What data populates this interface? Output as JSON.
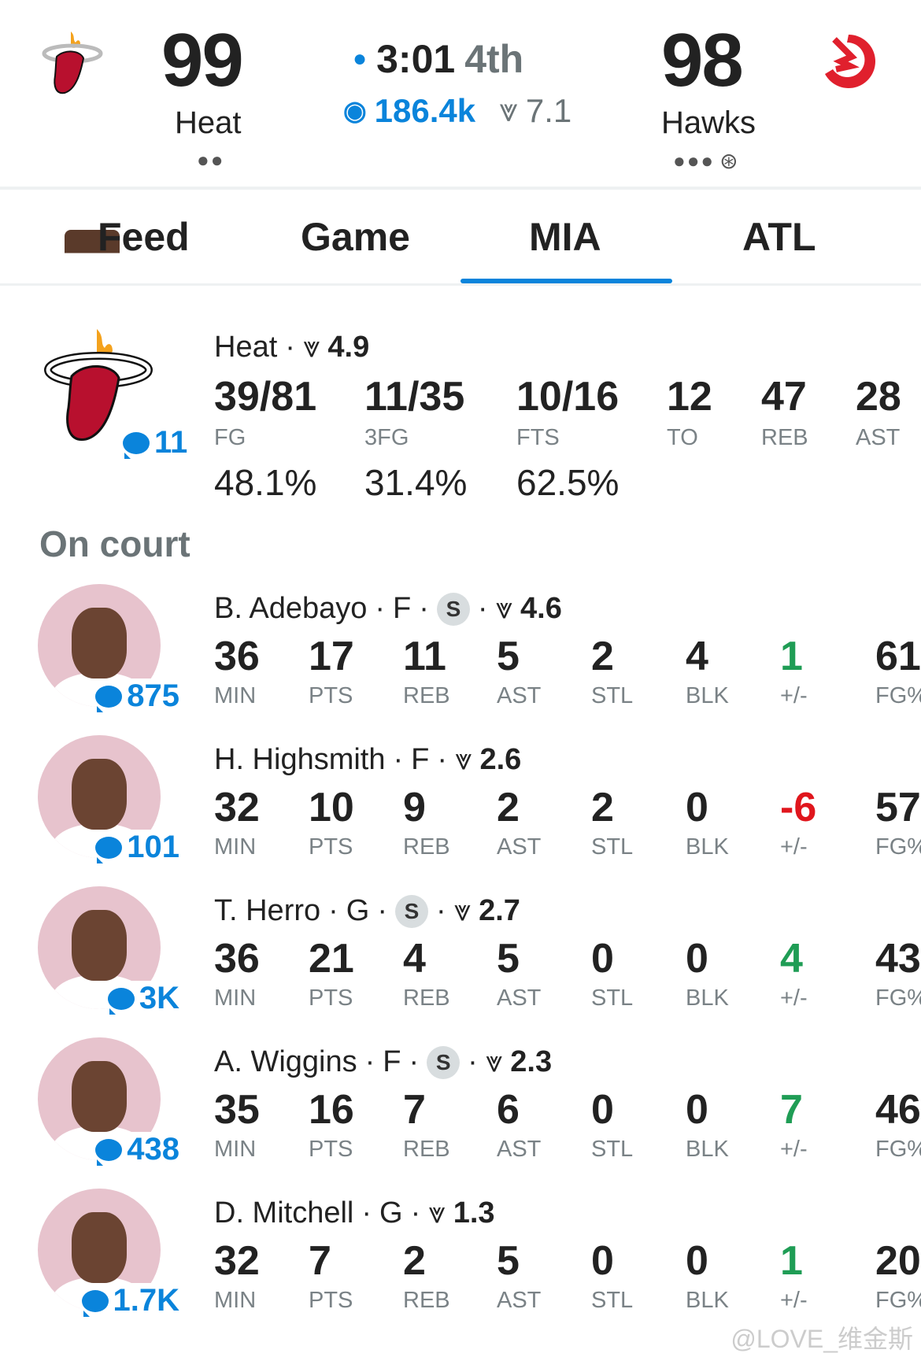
{
  "header": {
    "home": {
      "name": "Heat",
      "score": "99",
      "dots": "●●"
    },
    "away": {
      "name": "Hawks",
      "score": "98",
      "dots": "●●●"
    },
    "clock": "3:01",
    "period": "4th",
    "viewers": "186.4k",
    "rating": "7.1",
    "live_color": "#0a84db"
  },
  "tabs": [
    {
      "label": "Feed"
    },
    {
      "label": "Game"
    },
    {
      "label": "MIA",
      "active": true
    },
    {
      "label": "ATL"
    }
  ],
  "team": {
    "name": "Heat",
    "rating": "4.9",
    "comments": "11",
    "stats": [
      {
        "value": "39/81",
        "label": "FG",
        "pct": "48.1%"
      },
      {
        "value": "11/35",
        "label": "3FG",
        "pct": "31.4%"
      },
      {
        "value": "10/16",
        "label": "FTS",
        "pct": "62.5%"
      },
      {
        "value": "12",
        "label": "TO"
      },
      {
        "value": "47",
        "label": "REB"
      },
      {
        "value": "28",
        "label": "AST"
      }
    ]
  },
  "on_court": {
    "title": "On court",
    "labels": [
      "MIN",
      "PTS",
      "REB",
      "AST",
      "STL",
      "BLK",
      "+/-",
      "FG%"
    ],
    "players": [
      {
        "name": "B. Adebayo",
        "pos": "F",
        "starter": "S",
        "rating": "4.6",
        "comments": "875",
        "stats": [
          "36",
          "17",
          "11",
          "5",
          "2",
          "4",
          "1",
          "61"
        ]
      },
      {
        "name": "H. Highsmith",
        "pos": "F",
        "starter": "",
        "rating": "2.6",
        "comments": "101",
        "stats": [
          "32",
          "10",
          "9",
          "2",
          "2",
          "0",
          "-6",
          "57"
        ]
      },
      {
        "name": "T. Herro",
        "pos": "G",
        "starter": "S",
        "rating": "2.7",
        "comments": "3K",
        "stats": [
          "36",
          "21",
          "4",
          "5",
          "0",
          "0",
          "4",
          "43"
        ]
      },
      {
        "name": "A. Wiggins",
        "pos": "F",
        "starter": "S",
        "rating": "2.3",
        "comments": "438",
        "stats": [
          "35",
          "16",
          "7",
          "6",
          "0",
          "0",
          "7",
          "46"
        ]
      },
      {
        "name": "D. Mitchell",
        "pos": "G",
        "starter": "",
        "rating": "1.3",
        "comments": "1.7K",
        "stats": [
          "32",
          "7",
          "2",
          "5",
          "0",
          "0",
          "1",
          "20"
        ]
      }
    ]
  },
  "watermark": "@LOVE_维金斯"
}
